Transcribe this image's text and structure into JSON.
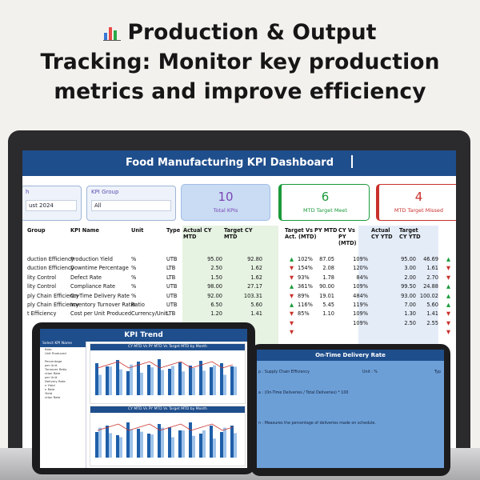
{
  "headline": {
    "icon": "bar-chart-icon",
    "line1": "Production & Output",
    "line2": "Tracking: Monitor key production",
    "line3": "metrics and improve efficiency"
  },
  "dashboard": {
    "title": "Food Manufacturing KPI Dashboard",
    "slicer_month": {
      "label": "h",
      "value": "ust 2024"
    },
    "slicer_group": {
      "label": "KPI Group",
      "value": "All"
    },
    "kpi_total": {
      "value": "10",
      "caption": "Total KPIs",
      "color": "#7b45b5"
    },
    "kpi_met": {
      "value": "6",
      "caption": "MTD Target Meet",
      "color": "#1a9a3a"
    },
    "kpi_missed": {
      "value": "4",
      "caption": "MTD Target Missed",
      "color": "#c9302c"
    },
    "columns": {
      "group": "Group",
      "name": "KPI Name",
      "unit": "Unit",
      "type": "Type",
      "actual_mtd": "Actual CY MTD",
      "target_mtd": "Target CY MTD",
      "target_vs_act": "Target Vs Act. (MTD)",
      "py_mtd": "PY MTD",
      "cy_vs_py": "CY Vs PY (MTD)",
      "actual_ytd": "Actual CY YTD",
      "target_ytd": "Target CY YTD"
    },
    "rows": [
      {
        "group": "duction Efficiency",
        "name": "Production Yield",
        "unit": "%",
        "type": "UTB",
        "actual": "95.00",
        "target": "92.80",
        "tva_arrow": "up",
        "tva": "102%",
        "py": "87.05",
        "cvp": "109%",
        "ay": "95.00",
        "ty": "46.69",
        "ty_arrow": "up"
      },
      {
        "group": "duction Efficiency",
        "name": "Downtime Percentage",
        "unit": "%",
        "type": "LTB",
        "actual": "2.50",
        "target": "1.62",
        "tva_arrow": "down",
        "tva": "154%",
        "py": "2.08",
        "cvp": "120%",
        "ay": "3.00",
        "ty": "1.61",
        "ty_arrow": "down"
      },
      {
        "group": "lity Control",
        "name": "Defect Rate",
        "unit": "%",
        "type": "LTB",
        "actual": "1.50",
        "target": "1.62",
        "tva_arrow": "down",
        "tva": "93%",
        "py": "1.78",
        "cvp": "84%",
        "ay": "2.00",
        "ty": "2.70",
        "ty_arrow": "down"
      },
      {
        "group": "lity Control",
        "name": "Compliance Rate",
        "unit": "%",
        "type": "UTB",
        "actual": "98.00",
        "target": "27.17",
        "tva_arrow": "up",
        "tva": "361%",
        "py": "90.00",
        "cvp": "109%",
        "ay": "99.50",
        "ty": "24.88",
        "ty_arrow": "up"
      },
      {
        "group": "ply Chain Efficiency",
        "name": "On-Time Delivery Rate",
        "unit": "%",
        "type": "UTB",
        "actual": "92.00",
        "target": "103.31",
        "tva_arrow": "down",
        "tva": "89%",
        "py": "19.01",
        "cvp": "484%",
        "ay": "93.00",
        "ty": "100.02",
        "ty_arrow": "up"
      },
      {
        "group": "ply Chain Efficiency",
        "name": "Inventory Turnover Ratio",
        "unit": "Ratio",
        "type": "UTB",
        "actual": "6.50",
        "target": "5.60",
        "tva_arrow": "up",
        "tva": "116%",
        "py": "5.45",
        "cvp": "119%",
        "ay": "7.00",
        "ty": "5.60",
        "ty_arrow": "up"
      },
      {
        "group": "t Efficiency",
        "name": "Cost per Unit Produced",
        "unit": "Currency/Unit",
        "type": "LTB",
        "actual": "1.20",
        "target": "1.41",
        "tva_arrow": "down",
        "tva": "85%",
        "py": "1.10",
        "cvp": "109%",
        "ay": "1.30",
        "ty": "1.41",
        "ty_arrow": "down"
      },
      {
        "group": "",
        "name": "",
        "unit": "",
        "type": "",
        "actual": "",
        "target": "",
        "tva_arrow": "down",
        "tva": "",
        "py": "",
        "cvp": "109%",
        "ay": "2.50",
        "ty": "2.55",
        "ty_arrow": "down"
      },
      {
        "group": "",
        "name": "",
        "unit": "",
        "type": "",
        "actual": "",
        "target": "",
        "tva_arrow": "down",
        "tva": "",
        "py": "",
        "cvp": "",
        "ay": "",
        "ty": "",
        "ty_arrow": "down"
      }
    ]
  },
  "trend": {
    "title": "KPI Trend",
    "side_head": "Select KPI Name",
    "side_items": [
      "Rate",
      "Unit Produced",
      "",
      "Percentage",
      "per Unit",
      "Turnover Ratio",
      "ction Rate",
      "per Unit",
      "Delivery Rate",
      "n Yield",
      "n Rate",
      "Yield",
      "ction Rate"
    ],
    "chart1_title": "CY MTD Vs PY MTD Vs Target MTD by Month",
    "chart2_title": "CY MTD Vs PY MTD Vs Target MTD by Month",
    "legend1": "Actual CY MTD  PY MTD  Target CY MTD",
    "legend2": "Actual CY YTD  Target CY YTD"
  },
  "delivery": {
    "title": "On-Time Delivery Rate",
    "group_text": "p : Supply Chain Efficiency",
    "unit_text": "Unit : %",
    "type_text": "Typ",
    "formula_text": "a : (On-Time Deliveries / Total Deliveries) * 100",
    "definition_text": "n : Measures the percentage of deliveries made on schedule."
  }
}
